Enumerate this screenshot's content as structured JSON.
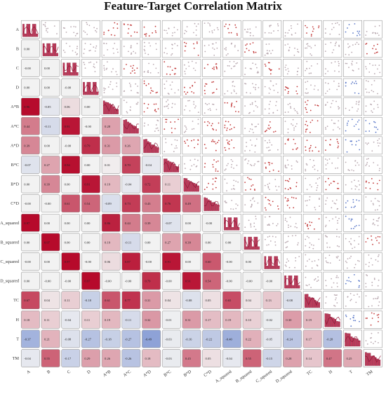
{
  "chart_data": {
    "type": "heatmap",
    "title": "Feature-Target Correlation Matrix",
    "variables": [
      "A",
      "B",
      "C",
      "D",
      "A*B",
      "A*C",
      "A*D",
      "B*C",
      "B*D",
      "C*D",
      "A_squared",
      "B_squared",
      "C_squared",
      "D_squared",
      "TC",
      "H",
      "T",
      "TM"
    ],
    "value_range": [
      -1,
      1
    ],
    "colormap": [
      "#3b5fc0",
      "#f2f2f2",
      "#b40426"
    ],
    "diagonal": "histogram",
    "upper_triangle": "scatter",
    "lower_values": [
      [
        "0.00"
      ],
      [
        "-0.00",
        "0.00"
      ],
      [
        "0.00",
        "0.00",
        "-0.00"
      ],
      [
        "0.96",
        "-0.05",
        "0.06",
        "0.00"
      ],
      [
        "0.44",
        "-0.11",
        "0.91",
        "-0.00",
        "0.28"
      ],
      [
        "0.39",
        "0.00",
        "-0.00",
        "0.79",
        "0.31",
        "0.26"
      ],
      [
        "-0.07",
        "0.27",
        "0.94",
        "0.00",
        "0.01",
        "0.70",
        "-0.04"
      ],
      [
        "0.00",
        "0.39",
        "0.00",
        "0.91",
        "0.19",
        "-0.04",
        "0.72",
        "0.11"
      ],
      [
        "-0.00",
        "-0.00",
        "0.61",
        "0.54",
        "-0.09",
        "0.73",
        "0.43",
        "0.76",
        "0.49"
      ],
      [
        "0.97",
        "0.00",
        "0.00",
        "0.00",
        "0.86",
        "0.44",
        "0.39",
        "-0.07",
        "0.00",
        "-0.00"
      ],
      [
        "0.00",
        "0.97",
        "0.00",
        "0.00",
        "0.19",
        "-0.11",
        "0.00",
        "0.27",
        "0.39",
        "0.00",
        "0.00"
      ],
      [
        "-0.00",
        "0.00",
        "0.97",
        "-0.00",
        "0.06",
        "0.87",
        "-0.00",
        "0.91",
        "0.00",
        "0.60",
        "-0.00",
        "0.00"
      ],
      [
        "0.00",
        "-0.00",
        "-0.00",
        "0.97",
        "-0.00",
        "-0.00",
        "0.79",
        "-0.00",
        "0.91",
        "0.54",
        "-0.00",
        "-0.00",
        "-0.00"
      ],
      [
        "0.67",
        "0.04",
        "0.11",
        "-0.18",
        "0.61",
        "0.77",
        "0.31",
        "0.04",
        "-0.08",
        "0.05",
        "0.65",
        "0.04",
        "0.13",
        "-0.08"
      ],
      [
        "0.18",
        "0.11",
        "-0.04",
        "0.11",
        "0.19",
        "-0.11",
        "0.32",
        "-0.01",
        "0.31",
        "0.17",
        "0.19",
        "0.10",
        "-0.02",
        "0.30",
        "0.19"
      ],
      [
        "-0.37",
        "0.21",
        "-0.08",
        "-0.27",
        "-0.18",
        "-0.27",
        "-0.49",
        "-0.03",
        "-0.16",
        "-0.22",
        "-0.40",
        "0.22",
        "-0.05",
        "-0.24",
        "0.17",
        "-0.28"
      ],
      [
        "-0.04",
        "0.55",
        "-0.17",
        "0.29",
        "0.26",
        "-0.26",
        "0.18",
        "-0.03",
        "0.45",
        "0.05",
        "-0.04",
        "0.55",
        "-0.15",
        "0.28",
        "0.14",
        "0.47",
        "0.25"
      ]
    ]
  }
}
